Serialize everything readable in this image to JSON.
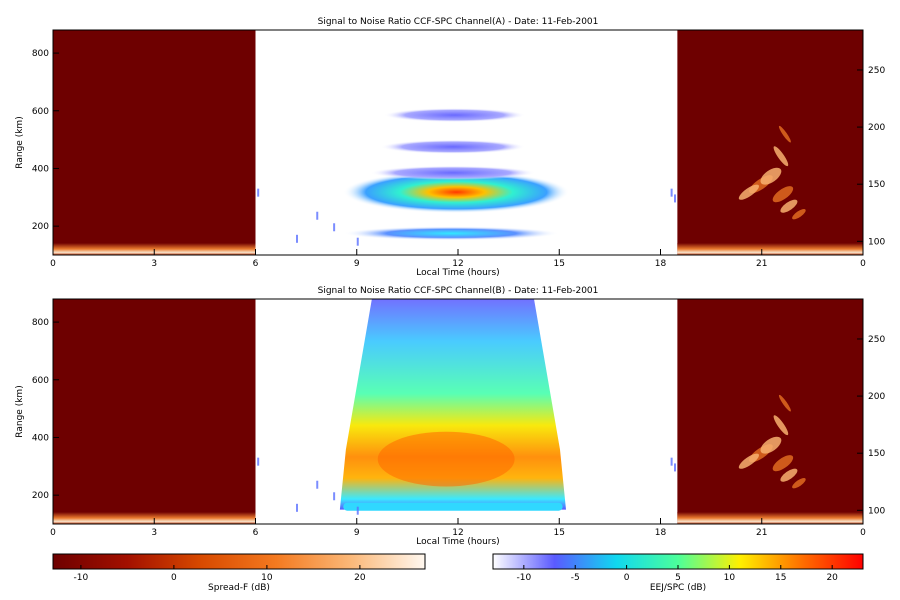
{
  "chart_data": [
    {
      "type": "heatmap",
      "title": "Signal to Noise Ratio CCF-SPC Channel(A) - Date: 11-Feb-2001",
      "xlabel": "Local Time (hours)",
      "ylabel": "Range (km)",
      "x_ticks": [
        "0",
        "3",
        "6",
        "9",
        "12",
        "15",
        "18",
        "21",
        "0"
      ],
      "y_ticks": [
        200,
        400,
        600,
        800
      ],
      "y2_ticks": [
        100,
        150,
        200,
        250
      ],
      "xlim": [
        0,
        24
      ],
      "ylim": [
        100,
        880
      ],
      "y2lim": [
        88,
        285
      ],
      "spreadf_windows_hours": [
        [
          0,
          6
        ],
        [
          18.5,
          24
        ]
      ],
      "ejj_window_hours": [
        6,
        18.5
      ],
      "layers": [
        {
          "name": "main F-layer",
          "t_start": 8.6,
          "t_end": 15.3,
          "range_km": 318,
          "peak_db": 20
        },
        {
          "name": "lower band",
          "t_start": 8.6,
          "t_end": 15.0,
          "range_km": 175,
          "peak_db": 3
        },
        {
          "name": "band 380 km",
          "t_start": 9.4,
          "t_end": 14.3,
          "range_km": 385,
          "peak_db": -5
        },
        {
          "name": "band 470 km",
          "t_start": 9.7,
          "t_end": 14.0,
          "range_km": 475,
          "peak_db": -2
        },
        {
          "name": "band 580 km",
          "t_start": 9.8,
          "t_end": 14.0,
          "range_km": 585,
          "peak_db": -7
        }
      ]
    },
    {
      "type": "heatmap",
      "title": "Signal to Noise Ratio CCF-SPC Channel(B) - Date: 11-Feb-2001",
      "xlabel": "Local Time (hours)",
      "ylabel": "Range (km)",
      "x_ticks": [
        "0",
        "3",
        "6",
        "9",
        "12",
        "15",
        "18",
        "21",
        "0"
      ],
      "y_ticks": [
        200,
        400,
        600,
        800
      ],
      "y2_ticks": [
        100,
        150,
        200,
        250
      ],
      "xlim": [
        0,
        24
      ],
      "ylim": [
        100,
        880
      ],
      "y2lim": [
        88,
        285
      ],
      "spreadf_windows_hours": [
        [
          0,
          6
        ],
        [
          18.5,
          24
        ]
      ],
      "ejj_window_hours": [
        6,
        18.5
      ],
      "layers": [
        {
          "name": "broad region",
          "t_start": 8.5,
          "t_end": 15.2,
          "range_km": [
            150,
            880
          ],
          "peak_db": 16
        },
        {
          "name": "core",
          "t_start": 9.8,
          "t_end": 13.5,
          "range_km": [
            230,
            420
          ],
          "peak_db": 14
        },
        {
          "name": "bottom band",
          "t_start": 8.6,
          "t_end": 15.1,
          "range_km": 160,
          "peak_db": 2
        }
      ]
    }
  ],
  "colorbars": [
    {
      "label": "Spread-F (dB)",
      "ticks": [
        "-10",
        "0",
        "10",
        "20"
      ],
      "range": [
        -13,
        27
      ],
      "colors": [
        "#6e0000",
        "#a31000",
        "#d84a00",
        "#f47a20",
        "#fbb878",
        "#fff8f0"
      ]
    },
    {
      "label": "EEJ/SPC (dB)",
      "ticks": [
        "-10",
        "-5",
        "0",
        "5",
        "10",
        "15",
        "20"
      ],
      "range": [
        -13,
        23
      ],
      "colors": [
        "#ffffff",
        "#5a5aff",
        "#10d8f0",
        "#4cff9a",
        "#fff000",
        "#ff7000",
        "#ff0000"
      ]
    }
  ]
}
